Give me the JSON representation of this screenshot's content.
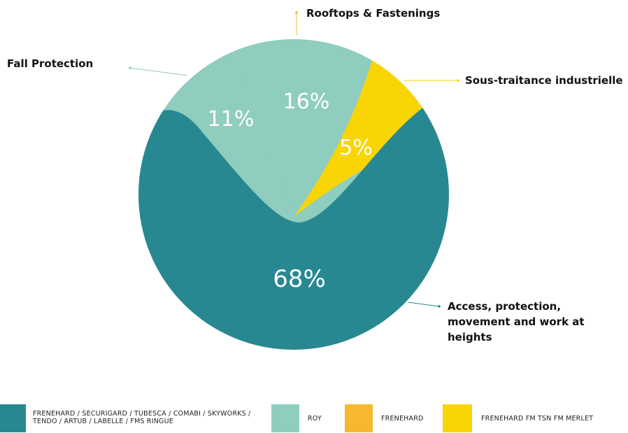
{
  "chart_data": {
    "type": "pie",
    "slices": [
      {
        "label": "Access, protection, movement and work at heights",
        "value": 68,
        "value_label": "68%",
        "color": "#288892",
        "legend": "FRENEHARD / SECURIGARD / TUBESCA / COMABI / SKYWORKS / TENDO / ARTUB / LABELLE / FMS RINGUE"
      },
      {
        "label": "Fall Protection",
        "value": 11,
        "value_label": "11%",
        "color": "#8fcdbf",
        "legend": "ROY"
      },
      {
        "label": "Rooftops & Fastenings",
        "value": 16,
        "value_label": "16%",
        "color": "#f6b731",
        "legend": "FRENEHARD"
      },
      {
        "label": "Sous-traitance industrielle",
        "value": 5,
        "value_label": "5%",
        "color": "#f9d506",
        "legend": "FRENEHARD FM TSN FM MERLET"
      }
    ]
  }
}
